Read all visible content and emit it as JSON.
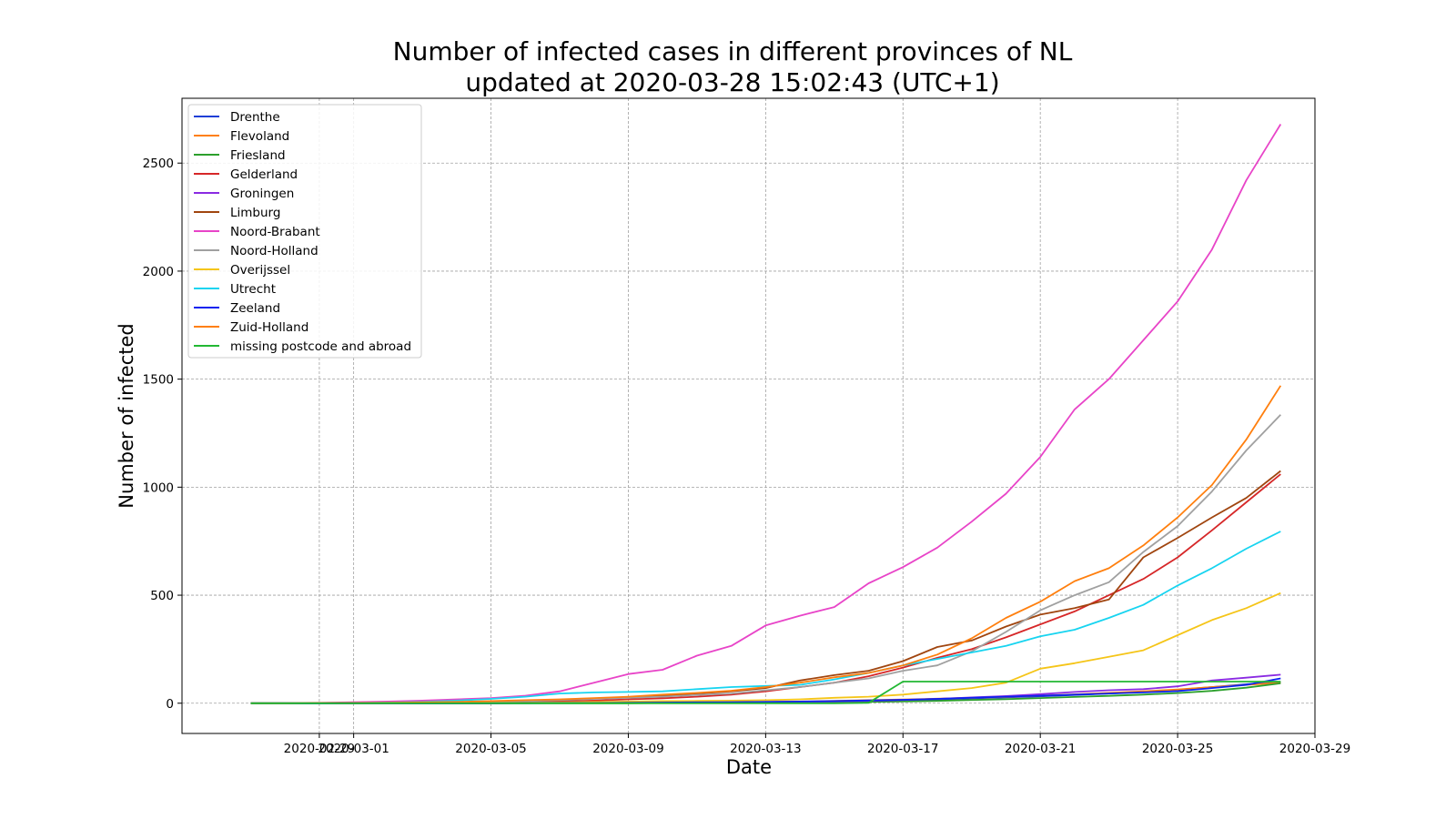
{
  "chart_data": {
    "type": "line",
    "title": "Number of infected cases in different provinces of NL",
    "subtitle": "updated at 2020-03-28 15:02:43 (UTC+1)",
    "xlabel": "Date",
    "ylabel": "Number of infected",
    "x_axis_type": "date",
    "xlim": [
      "2020-02-25",
      "2020-03-29"
    ],
    "ylim": [
      -140,
      2800
    ],
    "x_tick_labels": [
      "2020-02-29",
      "2020-03-01",
      "2020-03-05",
      "2020-03-09",
      "2020-03-13",
      "2020-03-17",
      "2020-03-21",
      "2020-03-25",
      "2020-03-29"
    ],
    "y_ticks": [
      0,
      500,
      1000,
      1500,
      2000,
      2500
    ],
    "grid": true,
    "legend_placement": "upper-left",
    "x": [
      "2020-02-27",
      "2020-02-28",
      "2020-02-29",
      "2020-03-01",
      "2020-03-02",
      "2020-03-03",
      "2020-03-04",
      "2020-03-05",
      "2020-03-06",
      "2020-03-07",
      "2020-03-08",
      "2020-03-09",
      "2020-03-10",
      "2020-03-11",
      "2020-03-12",
      "2020-03-13",
      "2020-03-14",
      "2020-03-15",
      "2020-03-16",
      "2020-03-17",
      "2020-03-18",
      "2020-03-19",
      "2020-03-20",
      "2020-03-21",
      "2020-03-22",
      "2020-03-23",
      "2020-03-24",
      "2020-03-25",
      "2020-03-26",
      "2020-03-27",
      "2020-03-28"
    ],
    "series": [
      {
        "name": "Drenthe",
        "color": "#1f3fd6",
        "values": [
          0,
          0,
          0,
          0,
          0,
          0,
          0,
          0,
          0,
          1,
          1,
          1,
          1,
          2,
          3,
          4,
          5,
          7,
          9,
          12,
          17,
          22,
          27,
          32,
          38,
          45,
          52,
          62,
          75,
          88,
          98
        ]
      },
      {
        "name": "Flevoland",
        "color": "#ff7f0e",
        "values": [
          0,
          0,
          0,
          0,
          0,
          0,
          0,
          1,
          1,
          1,
          2,
          2,
          3,
          4,
          5,
          6,
          8,
          11,
          14,
          17,
          21,
          25,
          29,
          35,
          41,
          48,
          55,
          64,
          75,
          85,
          95
        ]
      },
      {
        "name": "Friesland",
        "color": "#2ca02c",
        "values": [
          0,
          0,
          0,
          0,
          0,
          0,
          0,
          0,
          0,
          0,
          0,
          0,
          1,
          1,
          2,
          2,
          3,
          4,
          6,
          8,
          11,
          15,
          19,
          24,
          29,
          34,
          40,
          47,
          57,
          72,
          92
        ]
      },
      {
        "name": "Gelderland",
        "color": "#d62728",
        "values": [
          0,
          0,
          0,
          1,
          1,
          2,
          3,
          4,
          6,
          9,
          12,
          18,
          23,
          30,
          40,
          55,
          75,
          95,
          125,
          165,
          210,
          250,
          305,
          365,
          425,
          500,
          575,
          675,
          800,
          930,
          1060
        ]
      },
      {
        "name": "Groningen",
        "color": "#8a2be2",
        "values": [
          0,
          0,
          0,
          0,
          0,
          0,
          0,
          0,
          1,
          1,
          1,
          2,
          2,
          3,
          4,
          5,
          6,
          8,
          11,
          15,
          20,
          27,
          33,
          42,
          52,
          60,
          65,
          78,
          105,
          118,
          132
        ]
      },
      {
        "name": "Limburg",
        "color": "#a0450f",
        "values": [
          0,
          0,
          0,
          0,
          1,
          2,
          4,
          7,
          10,
          15,
          22,
          28,
          35,
          45,
          55,
          70,
          105,
          130,
          150,
          195,
          260,
          290,
          355,
          410,
          440,
          480,
          675,
          765,
          860,
          950,
          1075
        ]
      },
      {
        "name": "Noord-Brabant",
        "color": "#e844c8",
        "values": [
          0,
          1,
          2,
          5,
          8,
          12,
          18,
          24,
          35,
          55,
          95,
          135,
          155,
          220,
          265,
          360,
          405,
          445,
          555,
          630,
          720,
          840,
          970,
          1140,
          1360,
          1500,
          1680,
          1860,
          2100,
          2420,
          2680
        ]
      },
      {
        "name": "Noord-Holland",
        "color": "#a0a0a0",
        "values": [
          0,
          0,
          1,
          1,
          2,
          3,
          5,
          7,
          10,
          15,
          20,
          25,
          30,
          38,
          45,
          60,
          75,
          95,
          115,
          150,
          175,
          240,
          330,
          430,
          500,
          560,
          700,
          820,
          980,
          1170,
          1335
        ]
      },
      {
        "name": "Overijssel",
        "color": "#f5c518",
        "values": [
          0,
          0,
          0,
          0,
          0,
          1,
          1,
          2,
          3,
          4,
          6,
          8,
          10,
          11,
          12,
          14,
          18,
          25,
          30,
          40,
          55,
          70,
          95,
          160,
          185,
          215,
          245,
          315,
          385,
          440,
          510
        ]
      },
      {
        "name": "Utrecht",
        "color": "#17d4f0",
        "values": [
          0,
          0,
          0,
          1,
          3,
          6,
          12,
          20,
          30,
          45,
          50,
          52,
          55,
          65,
          75,
          80,
          85,
          110,
          140,
          175,
          205,
          235,
          265,
          310,
          340,
          395,
          455,
          545,
          625,
          715,
          795
        ]
      },
      {
        "name": "Zeeland",
        "color": "#0a22f0",
        "values": [
          0,
          0,
          0,
          0,
          0,
          0,
          0,
          0,
          1,
          1,
          1,
          2,
          3,
          4,
          5,
          6,
          8,
          10,
          13,
          16,
          20,
          25,
          30,
          35,
          40,
          45,
          50,
          56,
          70,
          85,
          115
        ]
      },
      {
        "name": "Zuid-Holland",
        "color": "#ff7f0e",
        "values": [
          0,
          0,
          1,
          1,
          2,
          4,
          6,
          10,
          14,
          18,
          24,
          30,
          40,
          48,
          58,
          75,
          95,
          120,
          140,
          175,
          225,
          300,
          395,
          470,
          565,
          625,
          730,
          860,
          1010,
          1220,
          1470
        ]
      },
      {
        "name": "missing postcode and abroad",
        "color": "#22b833",
        "values": [
          0,
          0,
          0,
          0,
          0,
          0,
          0,
          0,
          0,
          0,
          0,
          0,
          0,
          0,
          0,
          0,
          0,
          0,
          2,
          100,
          100,
          100,
          100,
          100,
          100,
          100,
          100,
          100,
          100,
          100,
          100
        ]
      }
    ]
  }
}
